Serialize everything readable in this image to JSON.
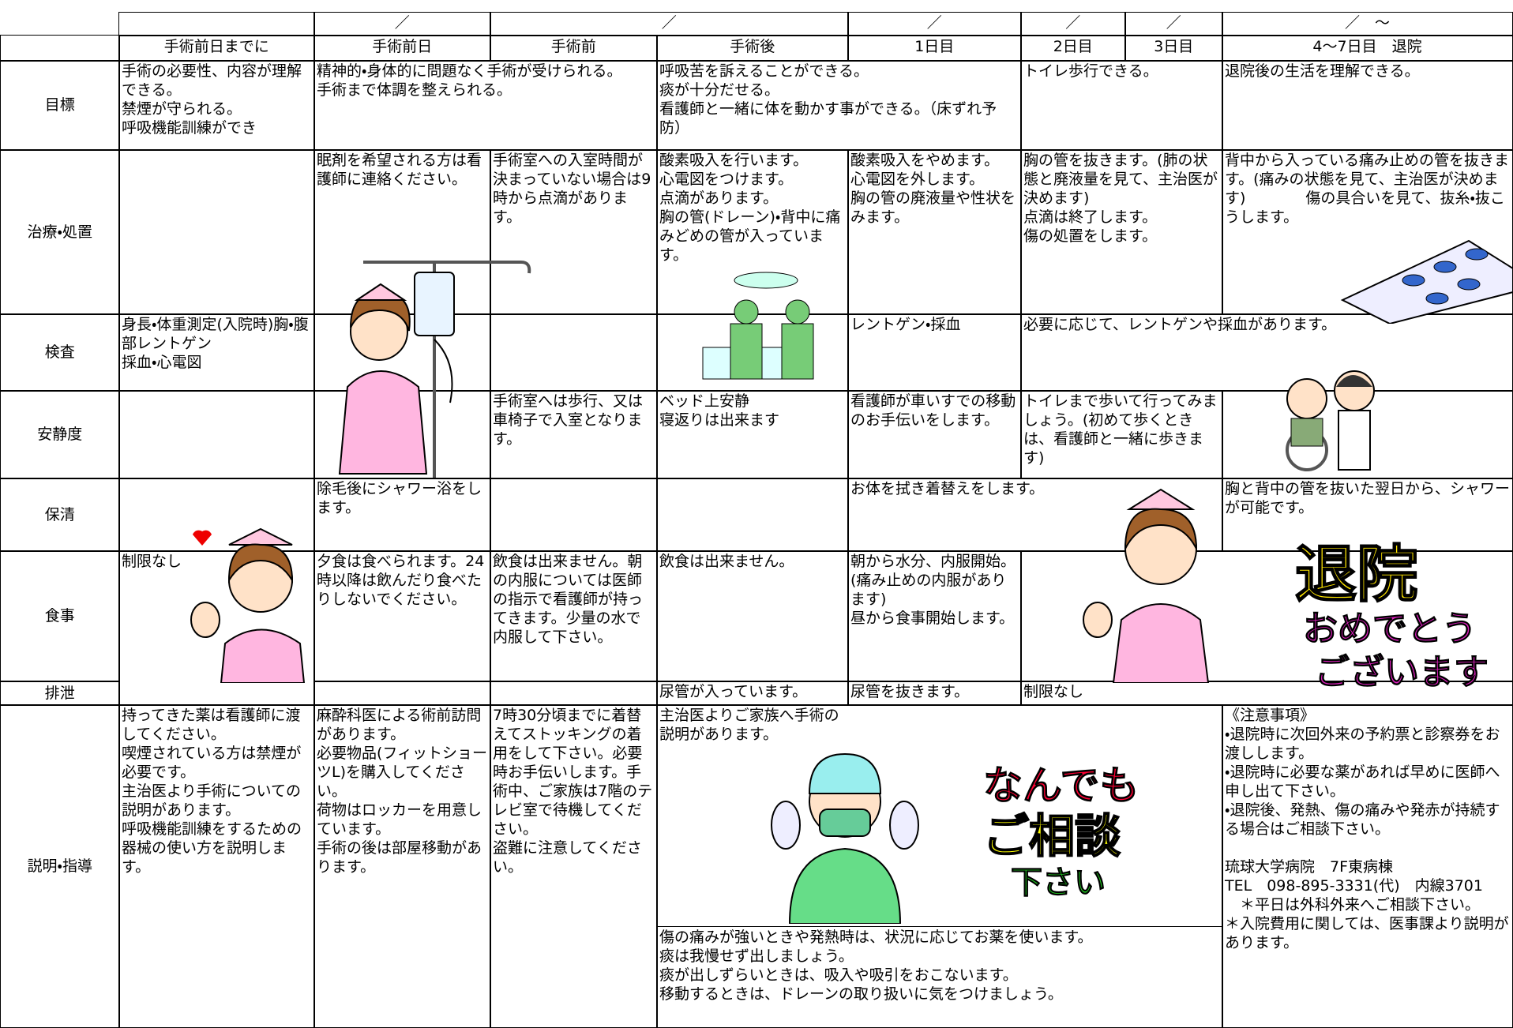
{
  "date_row": [
    "／",
    "／",
    "／",
    "／",
    "／",
    "／　～"
  ],
  "columns": [
    "手術前日までに",
    "手術前日",
    "手術前",
    "手術後",
    "1日目",
    "2日目",
    "3日目",
    "4～7日目　退院"
  ],
  "rows": [
    {
      "label": "目標",
      "cells": [
        "手術の必要性、内容が理解できる。\n禁煙が守られる。\n呼吸機能訓練ができ",
        "精神的・身体的に問題なく手術が受けられる。\n手術まで体調を整えられる。",
        "呼吸苦を訴えることができる。\n痰が十分だせる。\n看護師と一緒に体を動かす事ができる。（床ずれ予防）",
        "トイレ歩行できる。",
        "退院後の生活を理解できる。"
      ]
    },
    {
      "label": "治療・処置",
      "cells": [
        "眠剤を希望される方は看護師に連絡ください。",
        "手術室への入室時間が決まっていない場合は9時から点滴があります。",
        "酸素吸入を行います。\n心電図をつけます。\n点滴があります。\n胸の管(ドレーン)・背中に痛みどめの管が入っています。",
        "酸素吸入をやめます。　心電図を外します。　　胸の管の廃液量や性状をみます。",
        "胸の管を抜きます。(肺の状態と廃液量を見て、主治医が決めます)\n点滴は終了します。\n傷の処置をします。",
        "背中から入っている痛み止めの管を抜きます。(痛みの状態を見て、主治医が決めます)　　　　傷の具合いを見て、抜糸・抜こうします。"
      ]
    },
    {
      "label": "検査",
      "cells": [
        "身長・体重測定(入院時)胸・腹部レントゲン\n採血・心電図",
        "レントゲン・採血",
        "必要に応じて、レントゲンや採血があります。"
      ]
    },
    {
      "label": "安静度",
      "cells": [
        "手術室へは歩行、又は車椅子で入室となります。",
        "ベッド上安静\n寝返りは出来ます",
        "看護師が車いすでの移動のお手伝いをします。",
        "トイレまで歩いて行ってみましょう。(初めて歩くときは、看護師と一緒に歩きます)"
      ]
    },
    {
      "label": "保清",
      "cells": [
        "除毛後にシャワー浴をします。",
        "お体を拭き着替えをします。",
        "胸と背中の管を抜いた翌日から、シャワーが可能です。"
      ]
    },
    {
      "label": "食事",
      "cells": [
        "制限なし",
        "夕食は食べられます。24時以降は飲んだり食べたりしないでください。",
        "飲食は出来ません。朝の内服については医師の指示で看護師が持ってきます。少量の水で内服して下さい。",
        "飲食は出来ません。",
        "朝から水分、内服開始。(痛み止めの内服があります)\n昼から食事開始します。"
      ]
    },
    {
      "label": "排泄",
      "cells": [
        "尿管が入っています。",
        "尿管を抜きます。",
        "制限なし"
      ]
    },
    {
      "label": "説明・指導",
      "cells": [
        "持ってきた薬は看護師に渡してください。\n喫煙されている方は禁煙が必要です。\n主治医より手術についての説明があります。\n呼吸機能訓練をするための器械の使い方を説明します。",
        "麻酔科医による術前訪問があります。\n必要物品(フィットショーツL)を購入してください。\n荷物はロッカーを用意しています。\n手術の後は部屋移動があります。",
        "7時30分頃までに着替えてストッキングの着用をして下さい。必要時お手伝いします。手術中、ご家族は7階のテレビ室で待機してください。\n盗難に注意してください。",
        "主治医よりご家族へ手術の説明があります。",
        "傷の痛みが強いときや発熱時は、状況に応じてお薬を使います。\n痰は我慢せず出しましょう。\n痰が出しずらいときは、吸入や吸引をおこないます。\n移動するときは、ドレーンの取り扱いに気をつけましょう。",
        "《注意事項》\n・退院時に次回外来の予約票と診察券をお渡しします。\n・退院時に必要な薬があれば早めに医師へ申し出て下さい。\n・退院後、発熱、傷の痛みや発赤が持続する場合はご相談下さい。\n\n琉球大学病院　7F東病棟\nTEL　098-895-3331(代)　内線3701\n　＊平日は外科外来へご相談下さい。\n＊入院費用に関しては、医事課より説明があります。"
      ]
    }
  ],
  "artwork": {
    "discharge_1": "退院",
    "discharge_2": "おめでとう",
    "discharge_3": "ございます",
    "consult_1": "なんでも",
    "consult_2": "ご相談",
    "consult_3": "下さい"
  }
}
